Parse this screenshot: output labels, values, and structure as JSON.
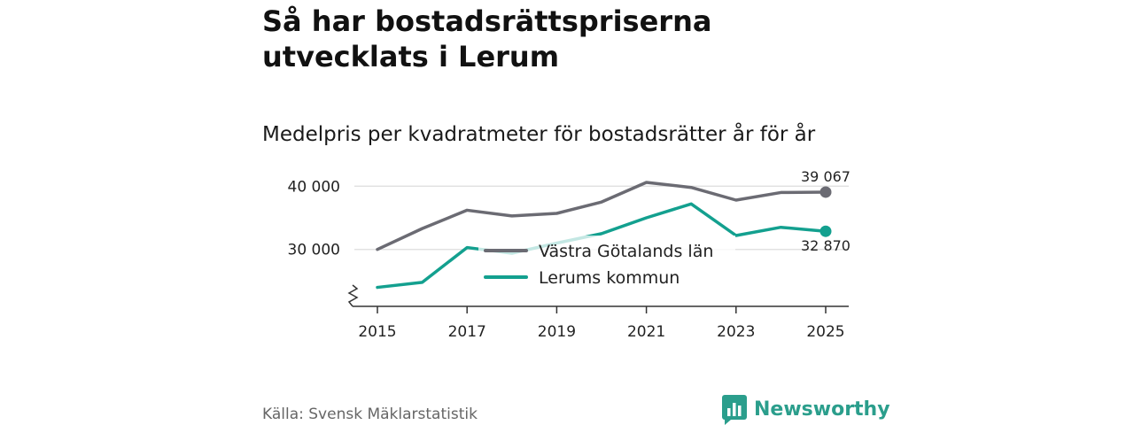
{
  "header": {
    "title": "Så har bostadsrättspriserna utvecklats i Lerum",
    "subtitle": "Medelpris per kvadratmeter för bostadsrätter år för år"
  },
  "footer": {
    "source": "Källa: Svensk Mäklarstatistik",
    "brand": "Newsworthy"
  },
  "colors": {
    "vastra": "#6b6b73",
    "lerum": "#13a08f",
    "grid": "#dddddd",
    "brand": "#2b9e8c"
  },
  "chart_data": {
    "type": "line",
    "title": "Så har bostadsrättspriserna utvecklats i Lerum",
    "subtitle": "Medelpris per kvadratmeter för bostadsrätter år för år",
    "x": [
      2015,
      2016,
      2017,
      2018,
      2019,
      2020,
      2021,
      2022,
      2023,
      2024,
      2025
    ],
    "xticks": [
      "2015",
      "2017",
      "2019",
      "2021",
      "2023",
      "2025"
    ],
    "yticks": [
      "30 000",
      "40 000"
    ],
    "ylim": [
      21000,
      42000
    ],
    "axis_break": true,
    "legend_position": "center",
    "series": [
      {
        "name": "Västra Götalands län",
        "values": [
          30000,
          33300,
          36200,
          35300,
          35700,
          37500,
          40600,
          39800,
          37800,
          39000,
          39067
        ],
        "end_label": "39 067"
      },
      {
        "name": "Lerums kommun",
        "values": [
          24000,
          24800,
          30300,
          29400,
          31000,
          32500,
          35000,
          37200,
          32200,
          33500,
          32870
        ],
        "end_label": "32 870"
      }
    ]
  }
}
